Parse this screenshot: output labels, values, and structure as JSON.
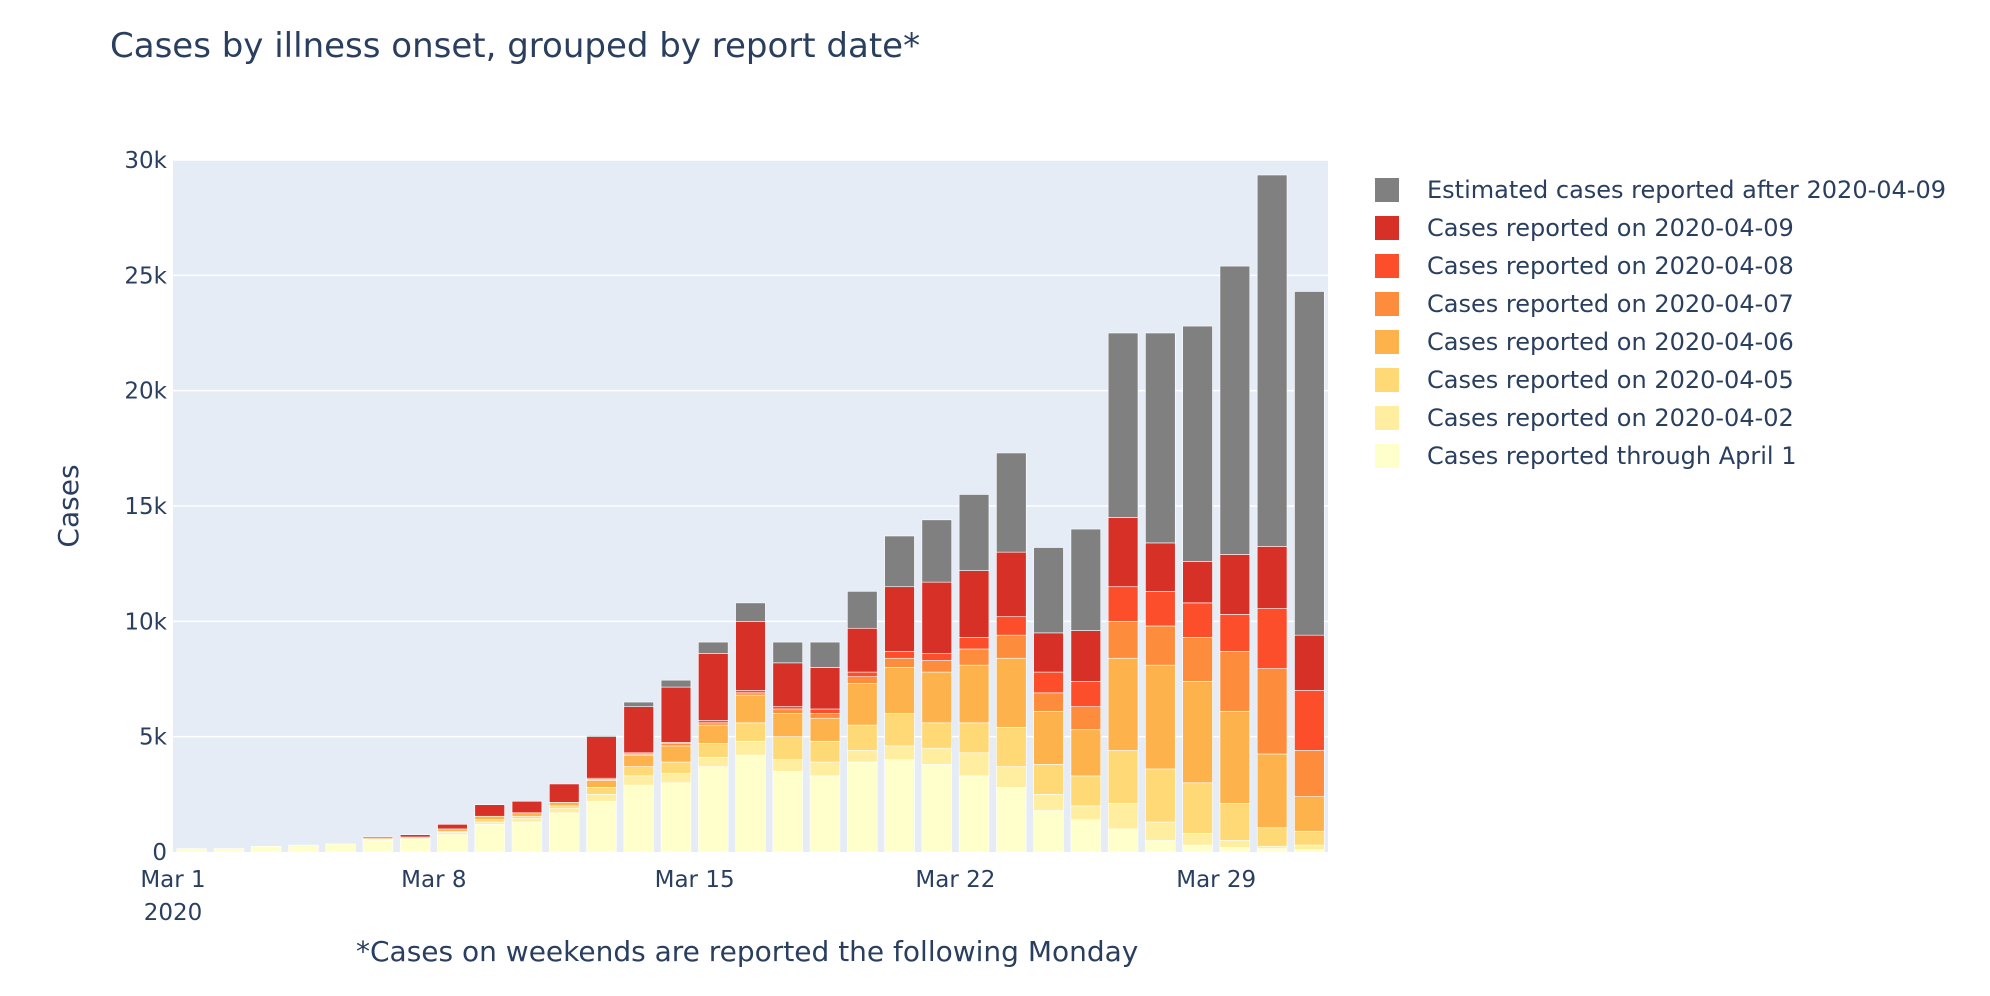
{
  "chart_data": {
    "type": "bar",
    "stacked": true,
    "title": "Cases by illness onset, grouped by report date*",
    "annotation": "*Cases on weekends are reported the following Monday",
    "xlabel": "",
    "ylabel": "Cases",
    "ylim": [
      0,
      30000
    ],
    "yticks": [
      0,
      5000,
      10000,
      15000,
      20000,
      25000,
      30000
    ],
    "ytick_labels": [
      "0",
      "5k",
      "10k",
      "15k",
      "20k",
      "25k",
      "30k"
    ],
    "xticks": [
      {
        "date": "2020-03-01",
        "label": "Mar 1",
        "sublabel": "2020"
      },
      {
        "date": "2020-03-08",
        "label": "Mar 8",
        "sublabel": ""
      },
      {
        "date": "2020-03-15",
        "label": "Mar 15",
        "sublabel": ""
      },
      {
        "date": "2020-03-22",
        "label": "Mar 22",
        "sublabel": ""
      },
      {
        "date": "2020-03-29",
        "label": "Mar 29",
        "sublabel": ""
      }
    ],
    "xlim": [
      "2020-03-01",
      "2020-03-31"
    ],
    "grid": true,
    "legend_position": "right",
    "categories": [
      "2020-03-01",
      "2020-03-02",
      "2020-03-03",
      "2020-03-04",
      "2020-03-05",
      "2020-03-06",
      "2020-03-07",
      "2020-03-08",
      "2020-03-09",
      "2020-03-10",
      "2020-03-11",
      "2020-03-12",
      "2020-03-13",
      "2020-03-14",
      "2020-03-15",
      "2020-03-16",
      "2020-03-17",
      "2020-03-18",
      "2020-03-19",
      "2020-03-20",
      "2020-03-21",
      "2020-03-22",
      "2020-03-23",
      "2020-03-24",
      "2020-03-25",
      "2020-03-26",
      "2020-03-27",
      "2020-03-28",
      "2020-03-29",
      "2020-03-30",
      "2020-03-31"
    ],
    "series": [
      {
        "name": "Cases reported through April 1",
        "color": "#ffffcc",
        "values": [
          150,
          150,
          250,
          300,
          350,
          500,
          550,
          750,
          1200,
          1300,
          1700,
          2200,
          2900,
          3000,
          3700,
          4200,
          3500,
          3300,
          3900,
          4000,
          3800,
          3300,
          2800,
          1800,
          1400,
          1000,
          500,
          300,
          200,
          150,
          100
        ]
      },
      {
        "name": "Cases reported on 2020-04-02",
        "color": "#ffeda0",
        "values": [
          0,
          0,
          0,
          0,
          0,
          50,
          50,
          100,
          100,
          150,
          200,
          300,
          400,
          400,
          400,
          600,
          500,
          600,
          500,
          600,
          700,
          1000,
          900,
          700,
          600,
          1100,
          800,
          500,
          300,
          100,
          200
        ]
      },
      {
        "name": "Cases reported on 2020-04-05",
        "color": "#fed976",
        "values": [
          0,
          0,
          0,
          0,
          0,
          0,
          0,
          50,
          100,
          100,
          100,
          300,
          400,
          500,
          600,
          800,
          1000,
          900,
          1100,
          1400,
          1100,
          1300,
          1700,
          1300,
          1300,
          2300,
          2300,
          2200,
          1600,
          800,
          600
        ]
      },
      {
        "name": "Cases reported on 2020-04-06",
        "color": "#feb24c",
        "values": [
          0,
          0,
          0,
          0,
          0,
          50,
          50,
          100,
          150,
          150,
          150,
          300,
          500,
          700,
          800,
          1200,
          1000,
          1000,
          1800,
          2000,
          2200,
          2500,
          3000,
          2300,
          2000,
          4000,
          4500,
          4400,
          4000,
          3200,
          1500
        ]
      },
      {
        "name": "Cases reported on 2020-04-07",
        "color": "#fd8d3c",
        "values": [
          0,
          0,
          0,
          0,
          0,
          0,
          0,
          0,
          0,
          0,
          0,
          50,
          50,
          100,
          100,
          100,
          200,
          200,
          300,
          400,
          500,
          700,
          1000,
          800,
          1000,
          1600,
          1700,
          1900,
          2600,
          3700,
          2000
        ]
      },
      {
        "name": "Cases reported on 2020-04-08",
        "color": "#fc4e2a",
        "values": [
          0,
          0,
          0,
          0,
          0,
          0,
          0,
          0,
          0,
          0,
          0,
          50,
          50,
          50,
          100,
          100,
          100,
          200,
          200,
          300,
          300,
          500,
          800,
          900,
          1100,
          1500,
          1500,
          1500,
          1600,
          2600,
          2600
        ]
      },
      {
        "name": "Cases reported on 2020-04-09",
        "color": "#d73027",
        "values": [
          0,
          0,
          0,
          0,
          0,
          50,
          100,
          200,
          500,
          500,
          800,
          1800,
          2000,
          2400,
          2900,
          3000,
          1900,
          1800,
          1900,
          2800,
          3100,
          2900,
          2800,
          1700,
          2200,
          3000,
          2100,
          1800,
          2600,
          2700,
          2400
        ]
      },
      {
        "name": "Estimated cases reported after 2020-04-09",
        "color": "#808080",
        "values": [
          0,
          0,
          0,
          0,
          0,
          0,
          0,
          0,
          0,
          0,
          0,
          50,
          200,
          300,
          500,
          800,
          900,
          1100,
          1600,
          2200,
          2700,
          3300,
          4300,
          3700,
          4400,
          8000,
          9100,
          10200,
          12500,
          16100,
          14900
        ]
      }
    ],
    "legend_order": [
      "Estimated cases reported after 2020-04-09",
      "Cases reported on 2020-04-09",
      "Cases reported on 2020-04-08",
      "Cases reported on 2020-04-07",
      "Cases reported on 2020-04-06",
      "Cases reported on 2020-04-05",
      "Cases reported on 2020-04-02",
      "Cases reported through April 1"
    ],
    "colors": {
      "plot_background": "#e5ecf6",
      "gridline": "#ffffff",
      "text": "#2a3f5f"
    }
  }
}
